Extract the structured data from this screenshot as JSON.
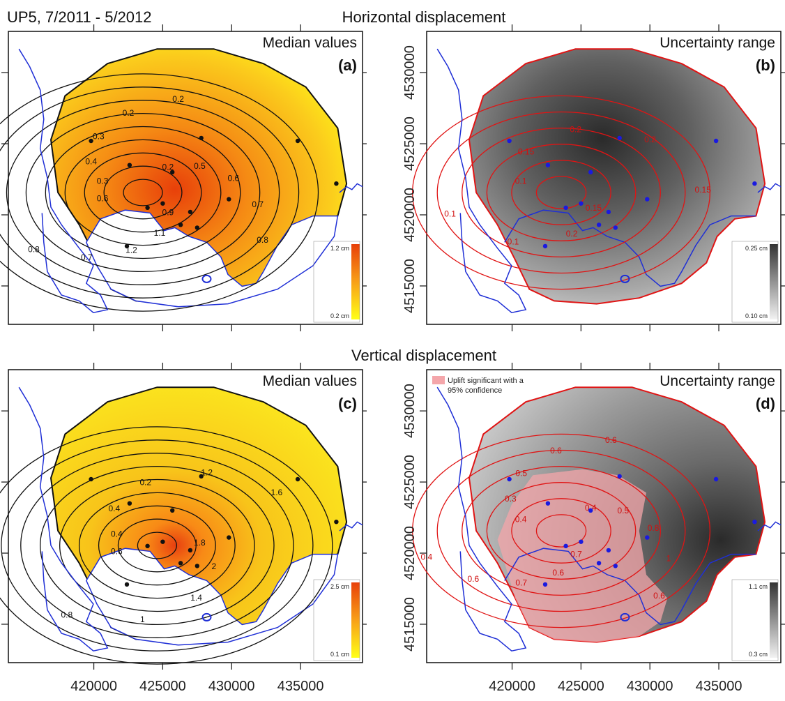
{
  "page": {
    "title": "UP5, 7/2011 - 5/2012",
    "section_top": "Horizontal displacement",
    "section_bottom": "Vertical displacement"
  },
  "colors": {
    "coastline": "#1f2fd6",
    "contour_black": "#111111",
    "contour_red": "#e01414",
    "station_black": "#111111",
    "station_blue": "#1a1ae0",
    "color_high": "#e8400a",
    "color_low": "#ffff18",
    "gray_high": "#2a2a2a",
    "gray_low": "#eeeeee",
    "significance_fill": "#f4a6aa"
  },
  "axes": {
    "x_ticks": [
      "420000",
      "425000",
      "430000",
      "435000"
    ],
    "y_ticks": [
      "4530000",
      "4525000",
      "4520000",
      "4515000"
    ]
  },
  "panels": [
    {
      "id": "a",
      "corner": "Median values",
      "letter": "(a)",
      "scale": {
        "max": "1.2 cm",
        "min": "0.2 cm",
        "type": "color"
      },
      "contour_labels": [
        "0.3",
        "0.4",
        "0.3",
        "0.2",
        "0.2",
        "0.2",
        "0.5",
        "0.6",
        "0.7",
        "0.8",
        "0.9",
        "1.1",
        "1.2",
        "0.7",
        "0.8",
        "0.6"
      ],
      "contour_type": "black"
    },
    {
      "id": "b",
      "corner": "Uncertainty range",
      "letter": "(b)",
      "scale": {
        "max": "0.25 cm",
        "min": "0.10 cm",
        "type": "gray"
      },
      "contour_labels": [
        "0.1",
        "0.15",
        "0.2",
        "0.2",
        "0.15",
        "0.15",
        "0.2",
        "0.1",
        "0.1"
      ],
      "contour_type": "red"
    },
    {
      "id": "c",
      "corner": "Median values",
      "letter": "(c)",
      "scale": {
        "max": "2.5 cm",
        "min": "0.1 cm",
        "type": "color"
      },
      "contour_labels": [
        "0.4",
        "0.4",
        "0.2",
        "1.2",
        "1.6",
        "1.8",
        "2",
        "1.4",
        "1",
        "0.8",
        "0.6"
      ],
      "contour_type": "black"
    },
    {
      "id": "d",
      "corner": "Uncertainty range",
      "letter": "(d)",
      "scale": {
        "max": "1.1 cm",
        "min": "0.3 cm",
        "type": "gray"
      },
      "legend_label_1": "Uplift significant with a",
      "legend_label_2": "95% confidence",
      "contour_labels": [
        "0.4",
        "0.3",
        "0.5",
        "0.6",
        "0.6",
        "0.4",
        "0.5",
        "0.8",
        "1",
        "0.6",
        "0.7",
        "0.6",
        "0.7",
        "0.6",
        "0.4"
      ],
      "contour_type": "red"
    }
  ],
  "stations": [
    {
      "x": 419800,
      "y": 4525200
    },
    {
      "x": 422600,
      "y": 4523500
    },
    {
      "x": 427800,
      "y": 4525400
    },
    {
      "x": 434800,
      "y": 4525200
    },
    {
      "x": 437600,
      "y": 4522200
    },
    {
      "x": 425700,
      "y": 4523000
    },
    {
      "x": 429800,
      "y": 4521100
    },
    {
      "x": 425000,
      "y": 4520800
    },
    {
      "x": 423900,
      "y": 4520500
    },
    {
      "x": 427000,
      "y": 4520200
    },
    {
      "x": 426300,
      "y": 4519300
    },
    {
      "x": 427500,
      "y": 4519100
    },
    {
      "x": 422400,
      "y": 4517800
    }
  ]
}
